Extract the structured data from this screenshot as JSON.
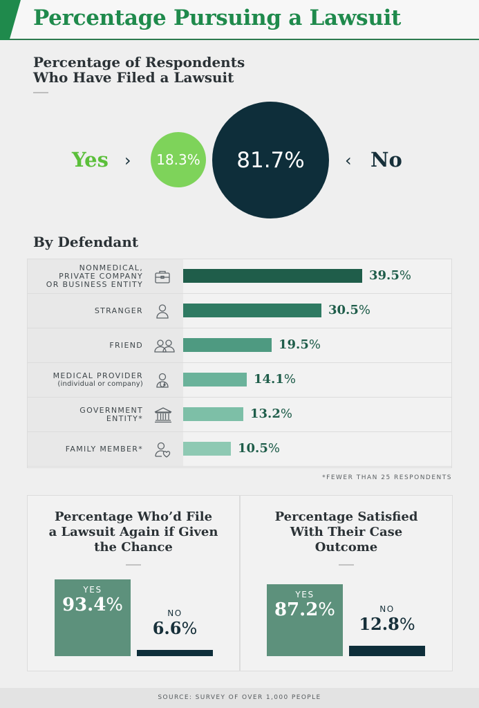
{
  "header": {
    "title": "Percentage Pursuing a Lawsuit",
    "accent": "#1f8a4c"
  },
  "filed": {
    "title_line1": "Percentage of Respondents",
    "title_line2": "Who Have Filed a Lawsuit",
    "yes_label": "Yes",
    "no_label": "No",
    "yes_value": "18.3",
    "no_value": "81.7",
    "pct": "%",
    "colors": {
      "yes": "#7ed35a",
      "no": "#0e2e3a"
    }
  },
  "defendant": {
    "title": "By Defendant",
    "footnote": "*FEWER THAN 25 RESPONDENTS"
  },
  "chart_data": [
    {
      "type": "pie",
      "title": "Percentage of Respondents Who Have Filed a Lawsuit",
      "categories": [
        "Yes",
        "No"
      ],
      "values": [
        18.3,
        81.7
      ]
    },
    {
      "type": "bar",
      "title": "By Defendant",
      "rows": [
        {
          "label_lines": [
            "NONMEDICAL,",
            "PRIVATE COMPANY",
            "OR BUSINESS ENTITY"
          ],
          "sub": "",
          "value": 39.5,
          "display": "39.5",
          "icon": "briefcase-icon",
          "color": "#1f5d4a"
        },
        {
          "label_lines": [
            "STRANGER"
          ],
          "sub": "",
          "value": 30.5,
          "display": "30.5",
          "icon": "person-icon",
          "color": "#2f7a62"
        },
        {
          "label_lines": [
            "FRIEND"
          ],
          "sub": "",
          "value": 19.5,
          "display": "19.5",
          "icon": "two-people-icon",
          "color": "#4e9a81"
        },
        {
          "label_lines": [
            "MEDICAL PROVIDER"
          ],
          "sub": "(individual or company)",
          "value": 14.1,
          "display": "14.1",
          "icon": "doctor-icon",
          "color": "#6ab29a"
        },
        {
          "label_lines": [
            "GOVERNMENT",
            "ENTITY*"
          ],
          "sub": "",
          "value": 13.2,
          "display": "13.2",
          "icon": "government-building-icon",
          "color": "#7dbfa7"
        },
        {
          "label_lines": [
            "FAMILY MEMBER*"
          ],
          "sub": "",
          "value": 10.5,
          "display": "10.5",
          "icon": "person-heart-icon",
          "color": "#8ec9b3"
        }
      ],
      "xlim": [
        0,
        39.5
      ]
    },
    {
      "type": "bar",
      "title": "Percentage Who'd File a Lawsuit Again if Given the Chance",
      "title_lines": [
        "Percentage Who’d File",
        "a Lawsuit Again if Given",
        "the Chance"
      ],
      "categories": [
        "YES",
        "NO"
      ],
      "values": [
        93.4,
        6.6
      ],
      "display": [
        "93.4",
        "6.6"
      ]
    },
    {
      "type": "bar",
      "title": "Percentage Satisfied With Their Case Outcome",
      "title_lines": [
        "Percentage Satisfied",
        "With Their Case",
        "Outcome"
      ],
      "categories": [
        "YES",
        "NO"
      ],
      "values": [
        87.2,
        12.8
      ],
      "display": [
        "87.2",
        "12.8"
      ]
    }
  ],
  "source": "SOURCE: SURVEY OF OVER 1,000 PEOPLE"
}
